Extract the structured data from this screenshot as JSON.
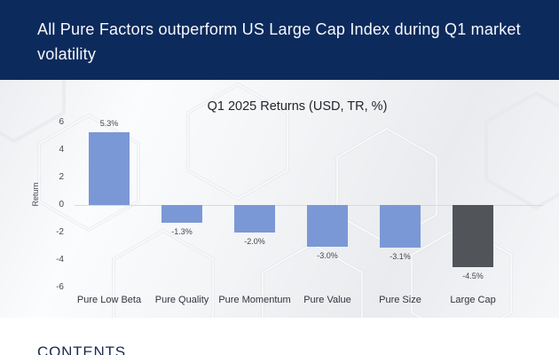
{
  "header": {
    "title": "All Pure Factors outperform US Large Cap Index during Q1 market volatility",
    "bg_color": "#0d2a5c",
    "text_color": "#f7f9fc"
  },
  "chart_data": {
    "type": "bar",
    "title": "Q1 2025 Returns (USD, TR, %)",
    "xlabel": "",
    "ylabel": "Return",
    "categories": [
      "Pure Low Beta",
      "Pure Quality",
      "Pure Momentum",
      "Pure Value",
      "Pure Size",
      "Large Cap"
    ],
    "values": [
      5.3,
      -1.3,
      -2.0,
      -3.0,
      -3.1,
      -4.5
    ],
    "data_labels": [
      "5.3%",
      "-1.3%",
      "-2.0%",
      "-3.0%",
      "-3.1%",
      "-4.5%"
    ],
    "ylim": [
      -6,
      6
    ],
    "yticks": [
      6,
      4,
      2,
      0,
      -2,
      -4,
      -6
    ],
    "grid": "zero-line-only",
    "legend_position": "none",
    "factor_bar_color": "#7b98d6",
    "benchmark_bar_color": "#515459",
    "benchmark_category": "Large Cap"
  },
  "footer": {
    "contents_label": "CONTENTS"
  }
}
